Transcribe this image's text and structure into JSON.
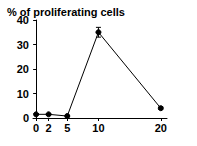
{
  "chart_data": {
    "type": "line",
    "title": "% of proliferating cells",
    "x": [
      0,
      2,
      5,
      10,
      20
    ],
    "values": [
      1.5,
      1.5,
      0.8,
      35,
      4
    ],
    "errors": [
      0.3,
      0.3,
      0.3,
      2,
      0.5
    ],
    "color": "#000000",
    "marker": "circle",
    "xlim": [
      -0.5,
      21
    ],
    "xticks": [
      0,
      2,
      5,
      10,
      20
    ],
    "ylim": [
      0,
      40
    ],
    "yticks": [
      0,
      10,
      20,
      30,
      40
    ],
    "grid": false
  }
}
